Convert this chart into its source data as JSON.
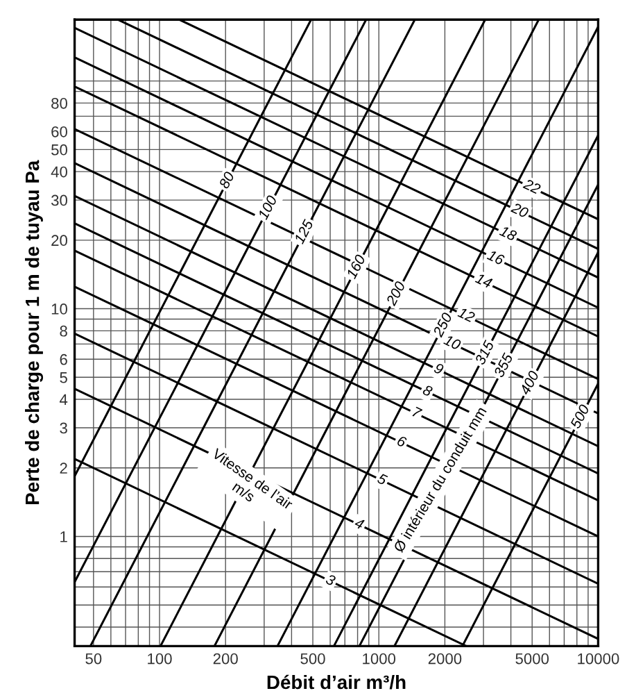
{
  "chart_data": {
    "type": "line",
    "xlabel": "Débit d’air m³/h",
    "ylabel": "Perte de charge pour 1 m de tuyau Pa",
    "log": "xy",
    "grid": true,
    "legend": false,
    "marker": "none",
    "line_style": "solid",
    "xlim": [
      41,
      10000
    ],
    "ylim": [
      0.33,
      186
    ],
    "xticks": [
      50,
      {
        "value": 60,
        "label": null
      },
      {
        "value": 70,
        "label": null
      },
      {
        "value": 80,
        "label": null
      },
      {
        "value": 90,
        "label": null
      },
      100,
      200,
      {
        "value": 300,
        "label": null
      },
      {
        "value": 400,
        "label": null
      },
      500,
      {
        "value": 600,
        "label": null
      },
      {
        "value": 700,
        "label": null
      },
      {
        "value": 800,
        "label": null
      },
      {
        "value": 900,
        "label": null
      },
      1000,
      2000,
      {
        "value": 3000,
        "label": null
      },
      {
        "value": 4000,
        "label": null
      },
      5000,
      {
        "value": 6000,
        "label": null
      },
      {
        "value": 7000,
        "label": null
      },
      {
        "value": 8000,
        "label": null
      },
      {
        "value": 9000,
        "label": null
      },
      10000
    ],
    "yticks": [
      {
        "value": 0.4,
        "label": null
      },
      {
        "value": 0.5,
        "label": null
      },
      {
        "value": 0.6,
        "label": null
      },
      {
        "value": 0.7,
        "label": null
      },
      {
        "value": 0.8,
        "label": null
      },
      {
        "value": 0.9,
        "label": null
      },
      1,
      2,
      3,
      4,
      5,
      6,
      {
        "value": 7,
        "label": null
      },
      8,
      {
        "value": 9,
        "label": null
      },
      10,
      20,
      30,
      40,
      50,
      60,
      {
        "value": 70,
        "label": null
      },
      80,
      {
        "value": 90,
        "label": null
      },
      {
        "value": 100,
        "label": null
      }
    ],
    "series": [
      {
        "name": "80",
        "color": "#000000",
        "x": [
          41,
          491
        ],
        "values": [
          1.84,
          186
        ]
      },
      {
        "name": "100",
        "color": "#000000",
        "x": [
          41,
          875
        ],
        "values": [
          0.63,
          186
        ]
      },
      {
        "name": "125",
        "color": "#000000",
        "x": [
          48.4,
          1459
        ],
        "values": [
          0.33,
          186
        ]
      },
      {
        "name": "160",
        "color": "#000000",
        "x": [
          101,
          3055
        ],
        "values": [
          0.33,
          186
        ]
      },
      {
        "name": "200",
        "color": "#000000",
        "x": [
          178,
          5358
        ],
        "values": [
          0.33,
          186
        ]
      },
      {
        "name": "250",
        "color": "#000000",
        "x": [
          345,
          10000
        ],
        "values": [
          0.33,
          173
        ]
      },
      {
        "name": "315",
        "color": "#000000",
        "x": [
          624,
          10000
        ],
        "values": [
          0.33,
          57.7
        ]
      },
      {
        "name": "355",
        "color": "#000000",
        "x": [
          815,
          10000
        ],
        "values": [
          0.33,
          35.1
        ]
      },
      {
        "name": "400",
        "color": "#000000",
        "x": [
          1178,
          10000
        ],
        "values": [
          0.33,
          17.7
        ]
      },
      {
        "name": "500",
        "color": "#000000",
        "x": [
          2404,
          10000
        ],
        "values": [
          0.33,
          4.69
        ]
      },
      {
        "name": "22",
        "color": "#000000",
        "x": [
          123,
          10000
        ],
        "values": [
          186,
          24.7
        ]
      },
      {
        "name": "20",
        "color": "#000000",
        "x": [
          64.6,
          10000
        ],
        "values": [
          186,
          18.3
        ]
      },
      {
        "name": "18",
        "color": "#000000",
        "x": [
          41,
          10000
        ],
        "values": [
          171,
          13.7
        ]
      },
      {
        "name": "16",
        "color": "#000000",
        "x": [
          41,
          10000
        ],
        "values": [
          127,
          10.1
        ]
      },
      {
        "name": "14",
        "color": "#000000",
        "x": [
          41,
          10000
        ],
        "values": [
          94.6,
          7.55
        ]
      },
      {
        "name": "12",
        "color": "#000000",
        "x": [
          41,
          10000
        ],
        "values": [
          61.5,
          4.91
        ]
      },
      {
        "name": "10",
        "color": "#000000",
        "x": [
          41,
          10000
        ],
        "values": [
          43.6,
          3.47
        ]
      },
      {
        "name": "9",
        "color": "#000000",
        "x": [
          41,
          10000
        ],
        "values": [
          31.3,
          2.49
        ]
      },
      {
        "name": "8",
        "color": "#000000",
        "x": [
          41,
          10000
        ],
        "values": [
          23.7,
          1.89
        ]
      },
      {
        "name": "7",
        "color": "#000000",
        "x": [
          41,
          10000
        ],
        "values": [
          18.0,
          1.44
        ]
      },
      {
        "name": "6",
        "color": "#000000",
        "x": [
          41,
          10000
        ],
        "values": [
          12.5,
          1.0
        ]
      },
      {
        "name": "5",
        "color": "#000000",
        "x": [
          41,
          10000
        ],
        "values": [
          7.78,
          0.62
        ]
      },
      {
        "name": "4",
        "color": "#000000",
        "x": [
          41,
          10000
        ],
        "values": [
          4.45,
          0.355
        ]
      },
      {
        "name": "3",
        "color": "#000000",
        "x": [
          41,
          2506
        ],
        "values": [
          2.19,
          0.33
        ]
      }
    ],
    "annotations": [
      "Vitesse de l’air\nm/s",
      "Ø intérieur du conduit mm"
    ]
  }
}
